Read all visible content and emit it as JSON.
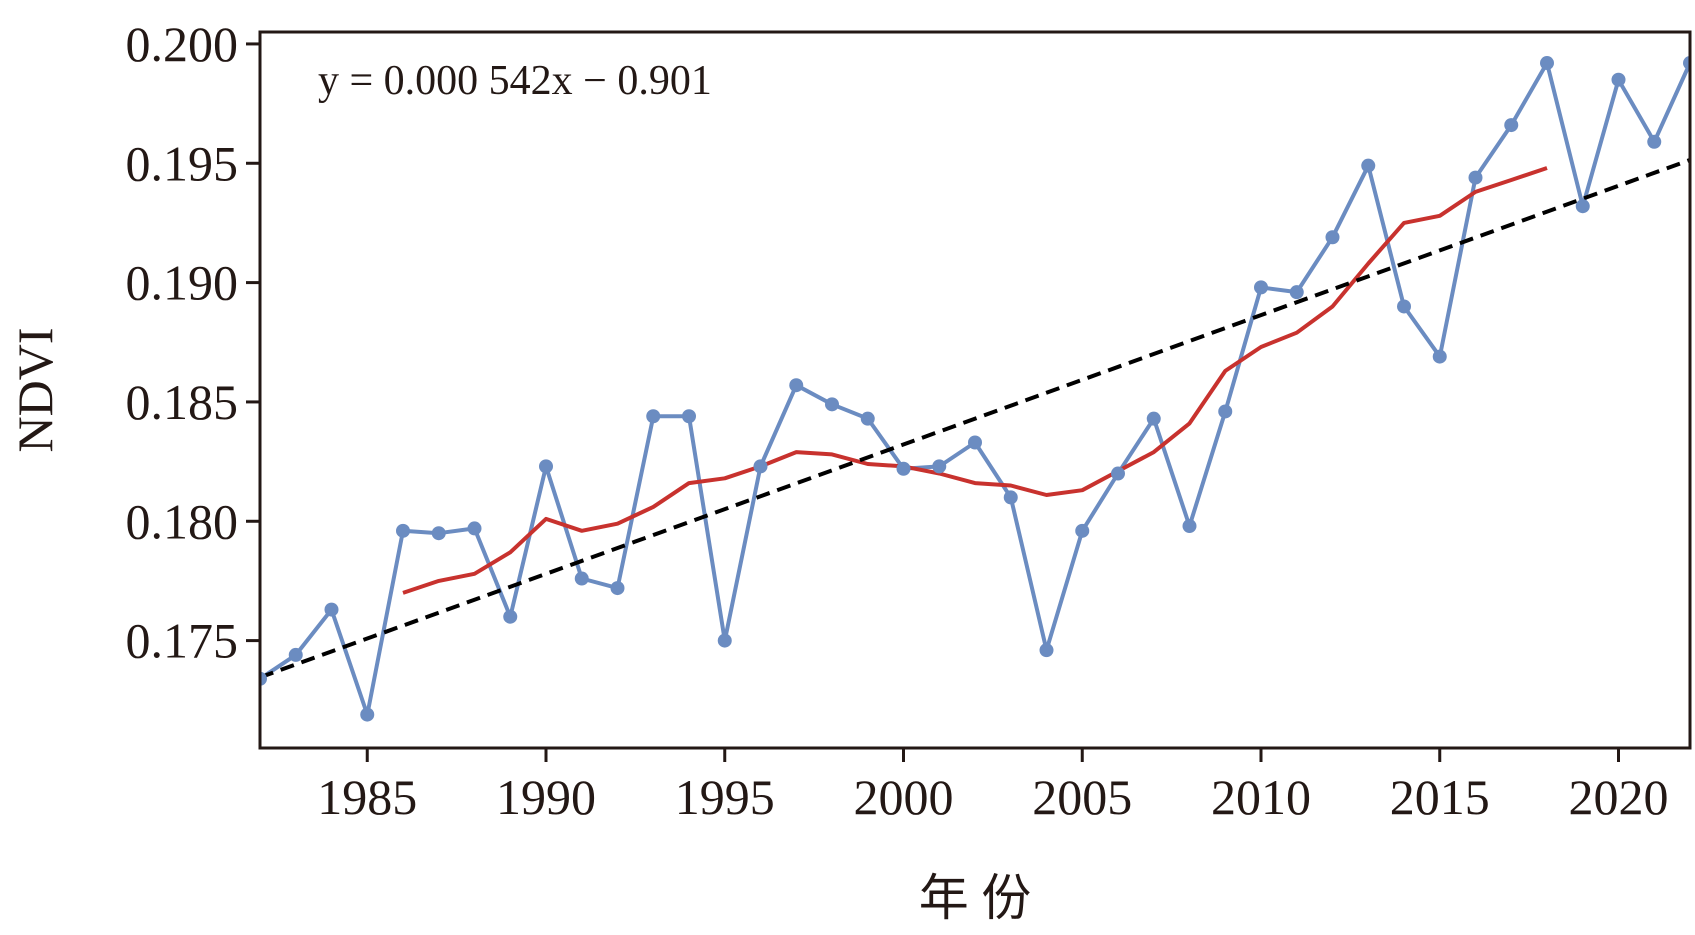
{
  "chart_data": {
    "type": "line",
    "xlabel": "年 份",
    "ylabel": "NDVI",
    "xlim": [
      1982,
      2022
    ],
    "ylim": [
      0.1705,
      0.2005
    ],
    "x_ticks": [
      "1985",
      "1990",
      "1995",
      "2000",
      "2005",
      "2010",
      "2015",
      "2020"
    ],
    "y_ticks": [
      "0.175",
      "0.180",
      "0.185",
      "0.190",
      "0.195",
      "0.200"
    ],
    "annotation": "y = 0.000 542x − 0.901",
    "grid": false,
    "legend": "none",
    "colors": {
      "observed": "#6b8cc1",
      "moving_average": "#c8322e",
      "trend": "#000000",
      "text": "#231815"
    },
    "series": [
      {
        "role": "observed",
        "x": [
          1982,
          1983,
          1984,
          1985,
          1986,
          1987,
          1988,
          1989,
          1990,
          1991,
          1992,
          1993,
          1994,
          1995,
          1996,
          1997,
          1998,
          1999,
          2000,
          2001,
          2002,
          2003,
          2004,
          2005,
          2006,
          2007,
          2008,
          2009,
          2010,
          2011,
          2012,
          2013,
          2014,
          2015,
          2016,
          2017,
          2018,
          2019,
          2020,
          2021,
          2022
        ],
        "values": [
          0.1734,
          0.1744,
          0.1763,
          0.1719,
          0.1796,
          0.1795,
          0.1797,
          0.176,
          0.1823,
          0.1776,
          0.1772,
          0.1844,
          0.1844,
          0.175,
          0.1823,
          0.1857,
          0.1849,
          0.1843,
          0.1822,
          0.1823,
          0.1833,
          0.181,
          0.1746,
          0.1796,
          0.182,
          0.1843,
          0.1798,
          0.1846,
          0.1898,
          0.1896,
          0.1919,
          0.1949,
          0.189,
          0.1869,
          0.1944,
          0.1966,
          0.1992,
          0.1932,
          0.1985,
          0.1959,
          0.1992
        ]
      },
      {
        "role": "moving_average",
        "x": [
          1986,
          1987,
          1988,
          1989,
          1990,
          1991,
          1992,
          1993,
          1994,
          1995,
          1996,
          1997,
          1998,
          1999,
          2000,
          2001,
          2002,
          2003,
          2004,
          2005,
          2006,
          2007,
          2008,
          2009,
          2010,
          2011,
          2012,
          2013,
          2014,
          2015,
          2016,
          2017,
          2018
        ],
        "values": [
          0.177,
          0.1775,
          0.1778,
          0.1787,
          0.1801,
          0.1796,
          0.1799,
          0.1806,
          0.1816,
          0.1818,
          0.1823,
          0.1829,
          0.1828,
          0.1824,
          0.1823,
          0.182,
          0.1816,
          0.1815,
          0.1811,
          0.1813,
          0.1821,
          0.1829,
          0.1841,
          0.1863,
          0.1873,
          0.1879,
          0.189,
          0.1908,
          0.1925,
          0.1928,
          0.1938,
          0.1943,
          0.1948
        ]
      },
      {
        "role": "trend",
        "x": [
          1982,
          2022
        ],
        "values": [
          0.17346,
          0.19514
        ]
      }
    ]
  }
}
